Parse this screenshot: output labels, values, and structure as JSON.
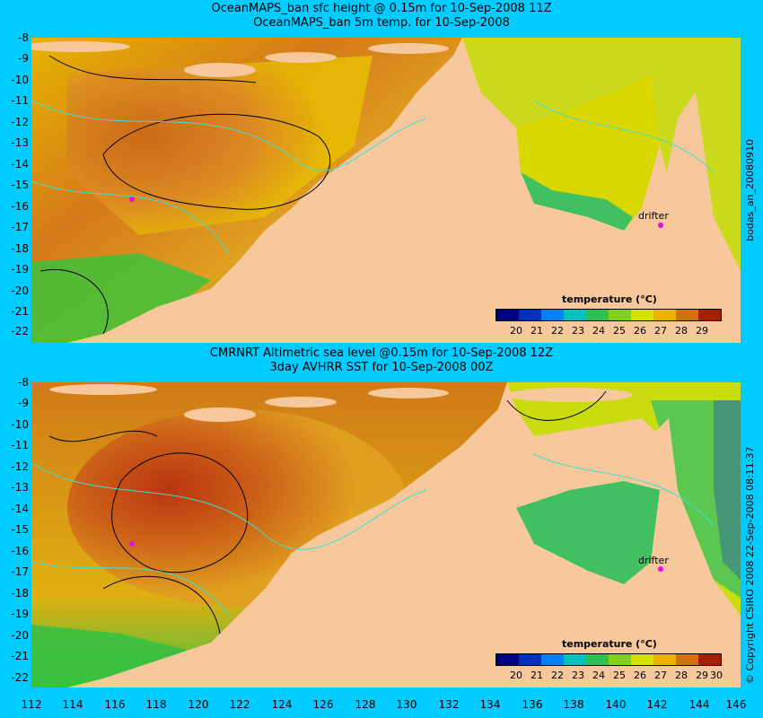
{
  "top_panel": {
    "title_line1": "OceanMAPS_ban sfc height @ 0.15m for 10-Sep-2008 11Z",
    "title_line2": "OceanMAPS_ban 5m temp. for 10-Sep-2008",
    "side_label": "bodas_an_20080910",
    "colorbar_title": "temperature (°C)",
    "colorbar_ticks": [
      "20",
      "21",
      "22",
      "23",
      "24",
      "25",
      "26",
      "27",
      "28",
      "29"
    ],
    "drifter_label": "drifter"
  },
  "bottom_panel": {
    "title_line1": "CMRNRT Altimetric sea level  @0.15m  for 10-Sep-2008 12Z",
    "title_line2": "3day AVHRR SST for 10-Sep-2008 00Z",
    "side_label": "© Copyright CSIRO 2008   22-Sep-2008 08:11:37",
    "colorbar_title": "temperature (°C)",
    "colorbar_ticks": [
      "20",
      "21",
      "22",
      "23",
      "24",
      "25",
      "26",
      "27",
      "28",
      "29",
      "30"
    ],
    "drifter_label": "drifter"
  },
  "axes": {
    "y_ticks": [
      "-8",
      "-9",
      "-10",
      "-11",
      "-12",
      "-13",
      "-14",
      "-15",
      "-16",
      "-17",
      "-18",
      "-19",
      "-20",
      "-21",
      "-22"
    ],
    "x_ticks": [
      "112",
      "114",
      "116",
      "118",
      "120",
      "122",
      "124",
      "126",
      "128",
      "130",
      "132",
      "134",
      "136",
      "138",
      "140",
      "142",
      "144",
      "146"
    ]
  },
  "colors": {
    "background": "#00ccff",
    "land": "#f6c89c",
    "contour_sst": "#40e0d0",
    "drifter": "#e010e0"
  }
}
